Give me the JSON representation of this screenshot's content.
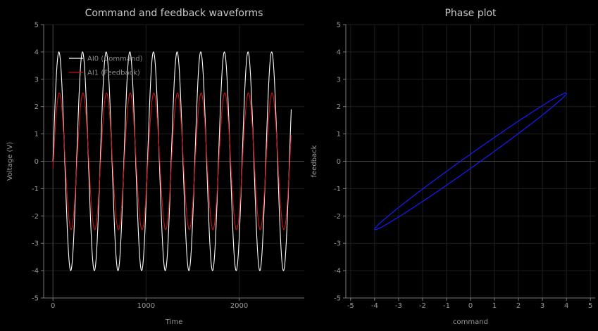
{
  "chart_data": [
    {
      "type": "line",
      "title": "Command and feedback waveforms",
      "xlabel": "Time",
      "ylabel": "Voltage (V)",
      "xlim": [
        -100,
        2700
      ],
      "ylim": [
        -5,
        5
      ],
      "xticks": [
        0,
        1000,
        2000
      ],
      "yticks": [
        -5,
        -4,
        -3,
        -2,
        -1,
        0,
        1,
        2,
        3,
        4,
        5
      ],
      "grid": true,
      "legend_position": "top-left",
      "signal_period": 254,
      "sample_count": 2560,
      "series": [
        {
          "name": "AI0 (Command)",
          "color": "#ffffff",
          "amplitude": 4.0,
          "phase_deg": 0
        },
        {
          "name": "AI1 (Feedback)",
          "color": "#cc1111",
          "amplitude": 2.5,
          "phase_deg": -6
        }
      ]
    },
    {
      "type": "line",
      "title": "Phase plot",
      "xlabel": "command",
      "ylabel": "feedback",
      "xlim": [
        -5.2,
        5.2
      ],
      "ylim": [
        -5,
        5
      ],
      "xticks": [
        -5,
        -4,
        -3,
        -2,
        -1,
        0,
        1,
        2,
        3,
        4,
        5
      ],
      "yticks": [
        -5,
        -4,
        -3,
        -2,
        -1,
        0,
        1,
        2,
        3,
        4,
        5
      ],
      "grid": true,
      "series": [
        {
          "color": "#1a1aff",
          "x_amplitude": 4.0,
          "y_amplitude": 2.5,
          "phase_deg": -6
        }
      ]
    }
  ]
}
